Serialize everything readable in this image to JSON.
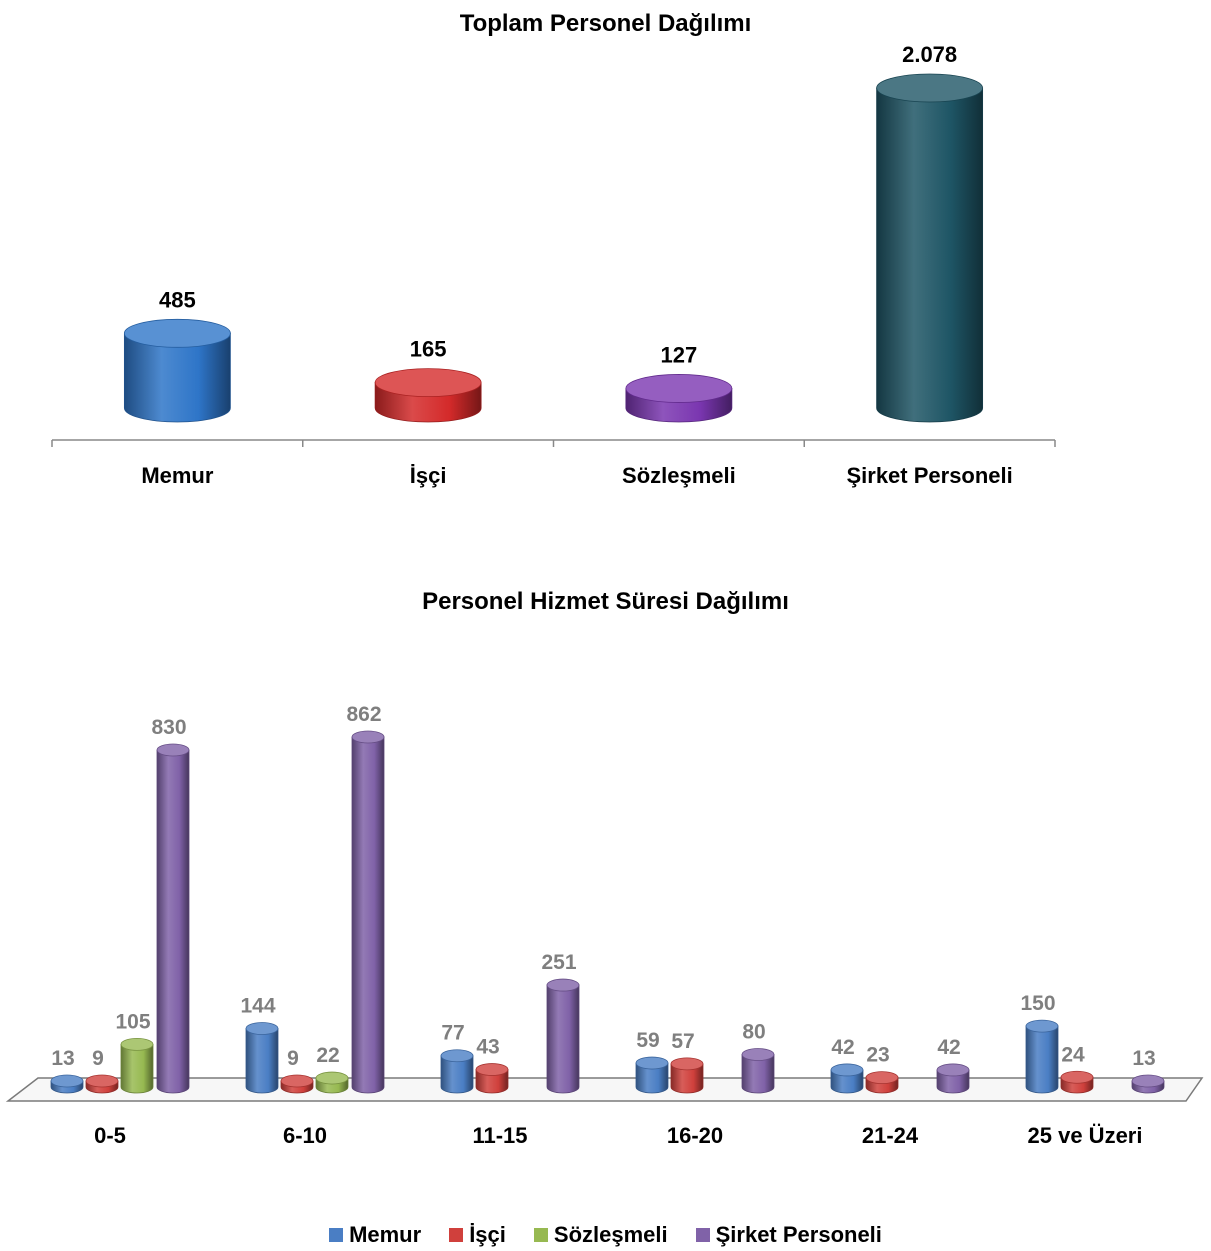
{
  "chart_data": [
    {
      "type": "bar",
      "title": "Toplam Personel Dağılımı",
      "categories": [
        "Memur",
        "İşçi",
        "Sözleşmeli",
        "Şirket Personeli"
      ],
      "values": [
        485,
        165,
        127,
        2078
      ],
      "value_labels": [
        "485",
        "165",
        "127",
        "2.078"
      ],
      "colors": [
        "#2E75C8",
        "#D42A2A",
        "#7A36B0",
        "#1E5565"
      ],
      "style": "3d-cylinder",
      "grid": false,
      "legend": "none"
    },
    {
      "type": "bar",
      "title": "Personel Hizmet Süresi Dağılımı",
      "categories": [
        "0-5",
        "6-10",
        "11-15",
        "16-20",
        "21-24",
        "25 ve Üzeri"
      ],
      "series": [
        {
          "name": "Memur",
          "color": "#4A7EC4",
          "values": [
            13,
            144,
            77,
            59,
            42,
            150
          ]
        },
        {
          "name": "İşçi",
          "color": "#D0403C",
          "values": [
            9,
            9,
            43,
            57,
            23,
            24
          ]
        },
        {
          "name": "Sözleşmeli",
          "color": "#97B951",
          "values": [
            105,
            22,
            null,
            null,
            null,
            null
          ]
        },
        {
          "name": "Şirket Personeli",
          "color": "#8062A8",
          "values": [
            830,
            862,
            251,
            80,
            42,
            13
          ]
        }
      ],
      "style": "3d-cylinder",
      "grid": false,
      "legend": "bottom-center"
    }
  ]
}
